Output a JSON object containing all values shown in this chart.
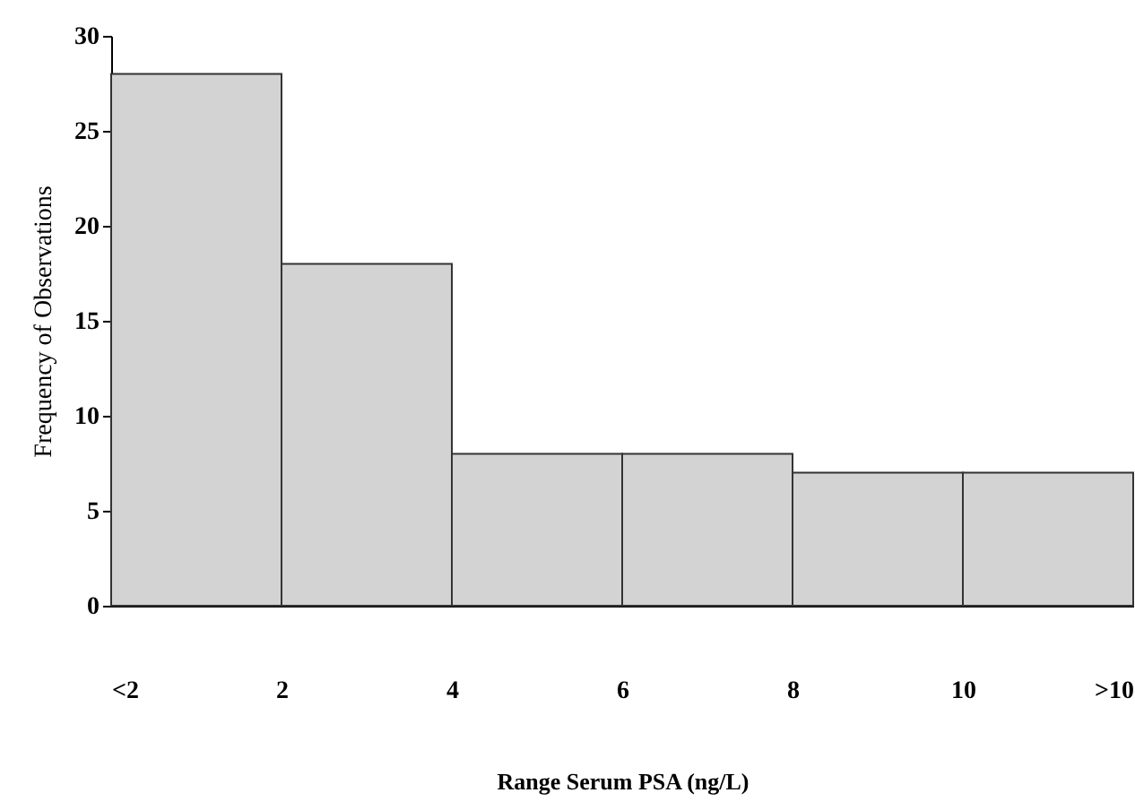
{
  "chart_data": {
    "type": "histogram",
    "xlabel": "Range Serum PSA (ng/L)",
    "ylabel": "Frequency of Observations",
    "bins": [
      0,
      2,
      4,
      6,
      8,
      10,
      12
    ],
    "values": [
      28,
      18,
      8,
      8,
      7,
      7
    ],
    "color": "#d3d3d3",
    "xlim": [
      0,
      12
    ],
    "xticks": [
      {
        "value": 0,
        "label": "<2"
      },
      2,
      4,
      6,
      8,
      10,
      {
        "value": 12,
        "label": ">10"
      }
    ],
    "ylim": [
      0,
      30
    ],
    "yticks": [
      0,
      5,
      10,
      15,
      20,
      25,
      30
    ]
  }
}
